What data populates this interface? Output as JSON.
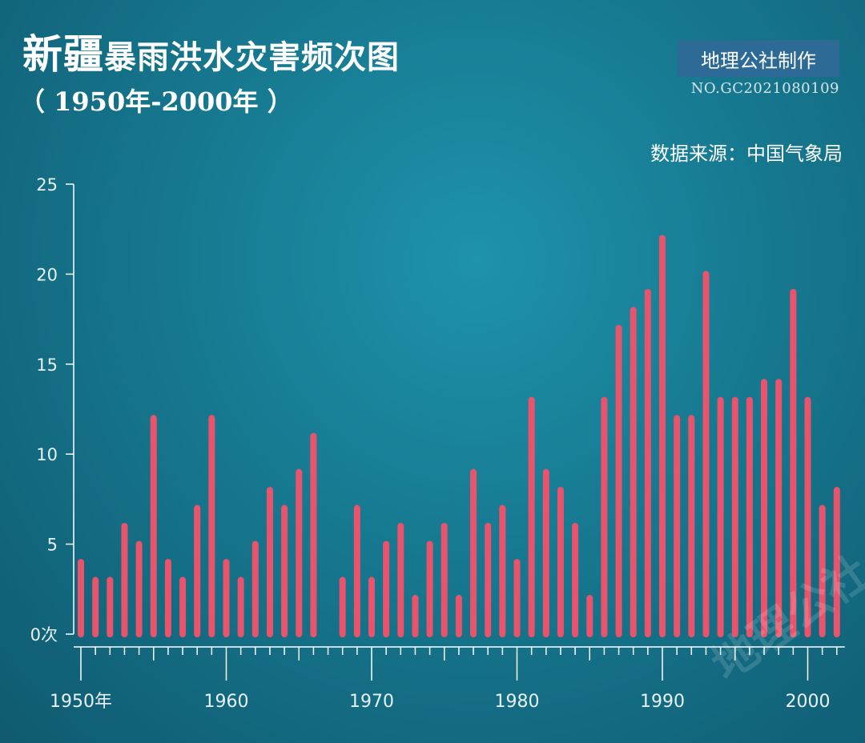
{
  "header": {
    "title_big": "新疆",
    "title_rest": "暴雨洪水灾害频次图",
    "subtitle": "（ 1950年-2000年 ）",
    "brand": "地理公社制作",
    "code": "NO.GC2021080109",
    "source": "数据来源：中国气象局",
    "watermark": "地理公社"
  },
  "colors": {
    "bar": "#e9546c",
    "axis": "#ffffff",
    "text": "#e8f2f5"
  },
  "chart_data": {
    "type": "bar",
    "title": "新疆暴雨洪水灾害频次图",
    "subtitle": "（ 1950年-2000年 ）",
    "xlabel": "",
    "ylabel": "",
    "ylim": [
      0,
      25
    ],
    "y_ticks": [
      0,
      5,
      10,
      15,
      20,
      25
    ],
    "y_tick_labels": [
      "0次",
      "5",
      "10",
      "15",
      "20",
      "25"
    ],
    "x_tick_labels": [
      {
        "year": 1950,
        "label": "1950年"
      },
      {
        "year": 1960,
        "label": "1960"
      },
      {
        "year": 1970,
        "label": "1970"
      },
      {
        "year": 1980,
        "label": "1980"
      },
      {
        "year": 1990,
        "label": "1990"
      },
      {
        "year": 2000,
        "label": "2000"
      }
    ],
    "grid": false,
    "legend": "none",
    "categories": [
      1950,
      1951,
      1952,
      1953,
      1954,
      1955,
      1956,
      1957,
      1958,
      1959,
      1960,
      1961,
      1962,
      1963,
      1964,
      1965,
      1966,
      1967,
      1968,
      1969,
      1970,
      1971,
      1972,
      1973,
      1974,
      1975,
      1976,
      1977,
      1978,
      1979,
      1980,
      1981,
      1982,
      1983,
      1984,
      1985,
      1986,
      1987,
      1988,
      1989,
      1990,
      1991,
      1992,
      1993,
      1994,
      1995,
      1996,
      1997,
      1998,
      1999,
      2000,
      2001,
      2002
    ],
    "values": [
      4,
      3,
      3,
      6,
      5,
      12,
      4,
      3,
      7,
      12,
      4,
      3,
      5,
      8,
      7,
      9,
      11,
      0,
      3,
      7,
      3,
      5,
      6,
      2,
      5,
      6,
      2,
      9,
      6,
      7,
      4,
      13,
      9,
      8,
      6,
      2,
      13,
      17,
      18,
      19,
      22,
      12,
      12,
      20,
      13,
      13,
      13,
      14,
      14,
      19,
      13,
      7,
      8
    ]
  }
}
